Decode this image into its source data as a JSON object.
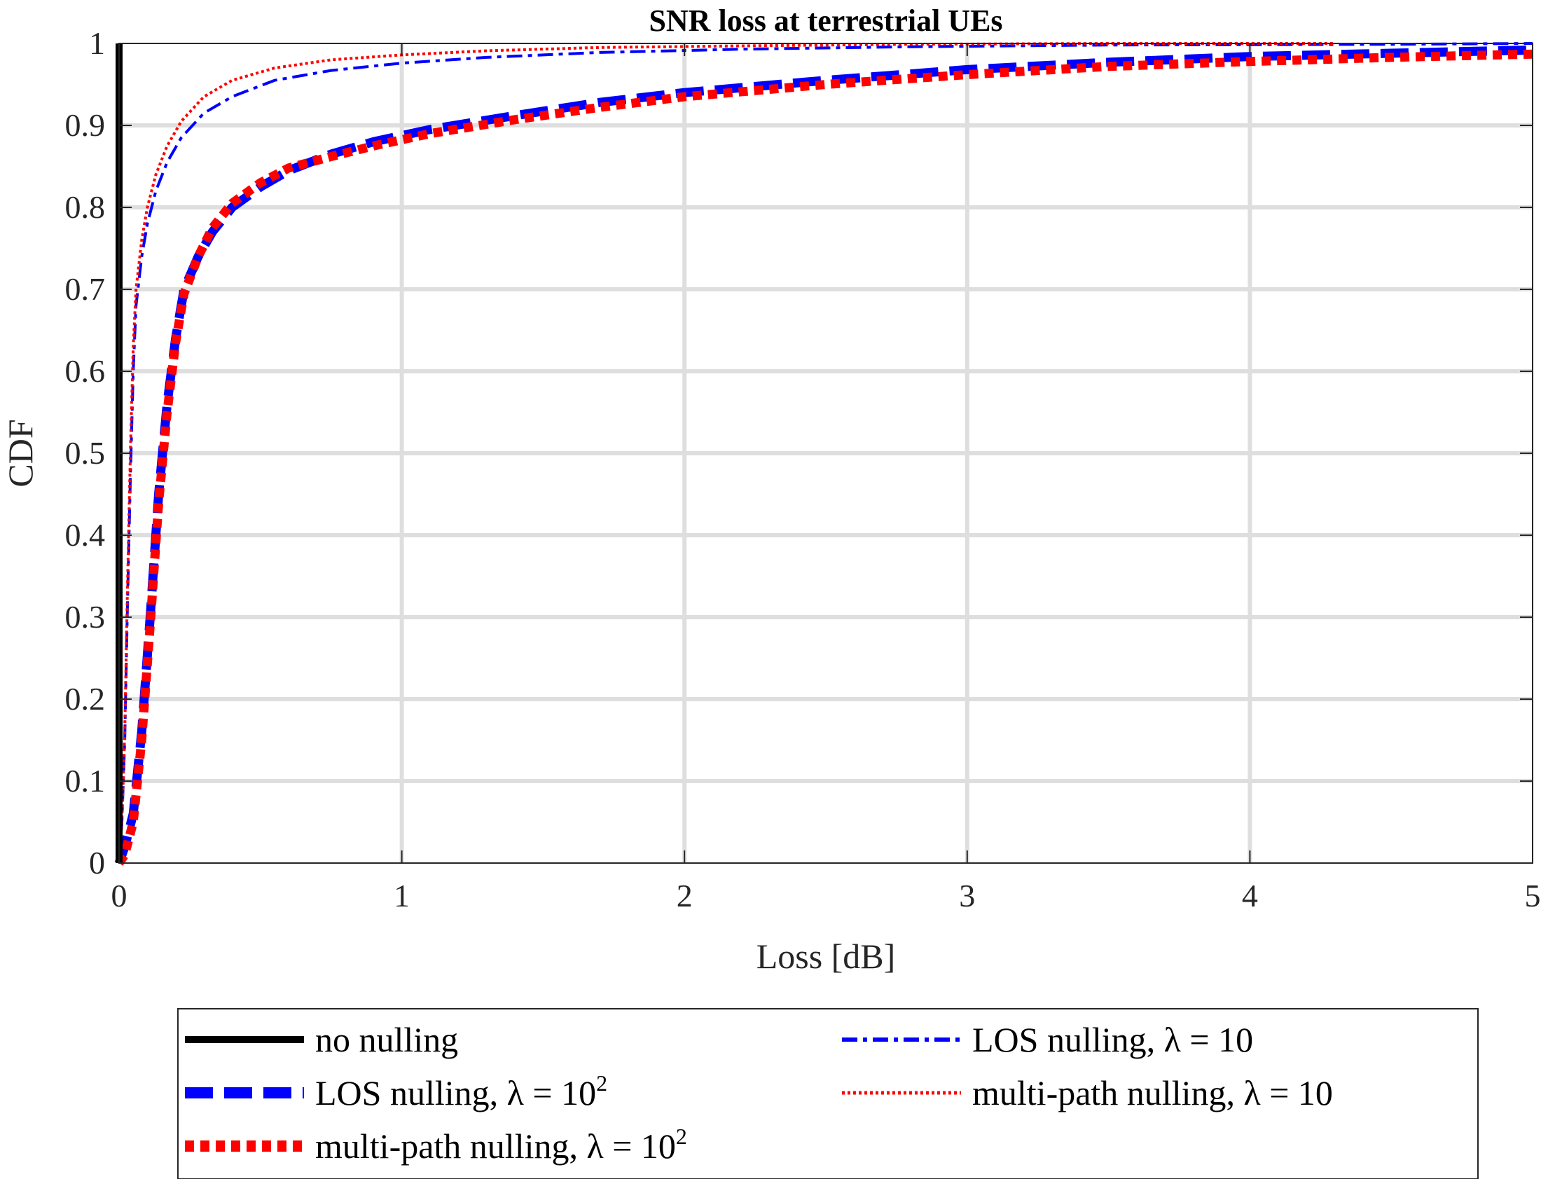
{
  "chart_data": {
    "type": "line",
    "title": "SNR loss at terrestrial UEs",
    "xlabel": "Loss [dB]",
    "ylabel": "CDF",
    "xlim": [
      0,
      5
    ],
    "ylim": [
      0,
      1
    ],
    "xticks": [
      "0",
      "1",
      "2",
      "3",
      "4",
      "5"
    ],
    "yticks": [
      "0",
      "0.1",
      "0.2",
      "0.3",
      "0.4",
      "0.5",
      "0.6",
      "0.7",
      "0.8",
      "0.9",
      "1"
    ],
    "grid": true,
    "legend_position": "below",
    "series": [
      {
        "name": "no nulling",
        "legend_main": "no nulling",
        "legend_sup": "",
        "color": "#000000",
        "style": "solid",
        "points": [
          [
            0,
            0
          ],
          [
            0,
            1
          ]
        ]
      },
      {
        "name": "LOS nulling, λ = 10",
        "legend_main": "LOS nulling, λ = 10",
        "legend_sup": "",
        "color": "#0000ff",
        "style": "dashdot",
        "points": [
          [
            0,
            0
          ],
          [
            0.01,
            0.05
          ],
          [
            0.02,
            0.15
          ],
          [
            0.03,
            0.32
          ],
          [
            0.04,
            0.47
          ],
          [
            0.05,
            0.6
          ],
          [
            0.06,
            0.68
          ],
          [
            0.08,
            0.74
          ],
          [
            0.1,
            0.78
          ],
          [
            0.13,
            0.82
          ],
          [
            0.17,
            0.855
          ],
          [
            0.22,
            0.885
          ],
          [
            0.3,
            0.915
          ],
          [
            0.4,
            0.935
          ],
          [
            0.55,
            0.955
          ],
          [
            0.75,
            0.967
          ],
          [
            1.0,
            0.976
          ],
          [
            1.3,
            0.983
          ],
          [
            1.7,
            0.989
          ],
          [
            2.2,
            0.993
          ],
          [
            2.8,
            0.996
          ],
          [
            3.5,
            0.998
          ],
          [
            4.5,
            0.999
          ],
          [
            5,
            1.0
          ]
        ]
      },
      {
        "name": "LOS nulling, λ = 10²",
        "legend_main": "LOS nulling, λ = 10",
        "legend_sup": "2",
        "color": "#0000ff",
        "style": "dashed",
        "points": [
          [
            0,
            0
          ],
          [
            0.02,
            0.02
          ],
          [
            0.05,
            0.06
          ],
          [
            0.08,
            0.16
          ],
          [
            0.11,
            0.3
          ],
          [
            0.14,
            0.45
          ],
          [
            0.17,
            0.56
          ],
          [
            0.2,
            0.64
          ],
          [
            0.23,
            0.7
          ],
          [
            0.28,
            0.74
          ],
          [
            0.33,
            0.77
          ],
          [
            0.4,
            0.8
          ],
          [
            0.5,
            0.825
          ],
          [
            0.6,
            0.845
          ],
          [
            0.75,
            0.865
          ],
          [
            0.9,
            0.88
          ],
          [
            1.1,
            0.895
          ],
          [
            1.4,
            0.912
          ],
          [
            1.7,
            0.928
          ],
          [
            2.0,
            0.94
          ],
          [
            2.5,
            0.955
          ],
          [
            3.0,
            0.968
          ],
          [
            3.5,
            0.977
          ],
          [
            4.0,
            0.984
          ],
          [
            4.5,
            0.988
          ],
          [
            5.0,
            0.992
          ]
        ]
      },
      {
        "name": "multi-path nulling, λ = 10",
        "legend_main": "multi-path nulling, λ = 10",
        "legend_sup": "",
        "color": "#ff0000",
        "style": "dotted",
        "points": [
          [
            0,
            0
          ],
          [
            0.01,
            0.05
          ],
          [
            0.02,
            0.16
          ],
          [
            0.03,
            0.34
          ],
          [
            0.04,
            0.5
          ],
          [
            0.05,
            0.63
          ],
          [
            0.06,
            0.7
          ],
          [
            0.08,
            0.76
          ],
          [
            0.1,
            0.8
          ],
          [
            0.13,
            0.84
          ],
          [
            0.17,
            0.875
          ],
          [
            0.22,
            0.905
          ],
          [
            0.3,
            0.935
          ],
          [
            0.4,
            0.955
          ],
          [
            0.55,
            0.97
          ],
          [
            0.75,
            0.98
          ],
          [
            1.0,
            0.986
          ],
          [
            1.3,
            0.991
          ],
          [
            1.7,
            0.995
          ],
          [
            2.2,
            0.997
          ],
          [
            2.8,
            0.999
          ],
          [
            3.5,
            1.0
          ],
          [
            4.3,
            1.0
          ]
        ]
      },
      {
        "name": "multi-path nulling, λ = 10²",
        "legend_main": "multi-path nulling, λ = 10",
        "legend_sup": "2",
        "color": "#ff0000",
        "style": "dotted-thick",
        "points": [
          [
            0,
            0
          ],
          [
            0.02,
            0.01
          ],
          [
            0.05,
            0.05
          ],
          [
            0.08,
            0.15
          ],
          [
            0.11,
            0.29
          ],
          [
            0.14,
            0.44
          ],
          [
            0.17,
            0.55
          ],
          [
            0.2,
            0.635
          ],
          [
            0.23,
            0.695
          ],
          [
            0.28,
            0.74
          ],
          [
            0.33,
            0.775
          ],
          [
            0.4,
            0.805
          ],
          [
            0.5,
            0.83
          ],
          [
            0.6,
            0.848
          ],
          [
            0.75,
            0.862
          ],
          [
            0.9,
            0.875
          ],
          [
            1.1,
            0.89
          ],
          [
            1.4,
            0.907
          ],
          [
            1.7,
            0.922
          ],
          [
            2.0,
            0.935
          ],
          [
            2.5,
            0.95
          ],
          [
            3.0,
            0.962
          ],
          [
            3.5,
            0.972
          ],
          [
            4.0,
            0.978
          ],
          [
            4.5,
            0.983
          ],
          [
            5.0,
            0.987
          ]
        ]
      }
    ]
  }
}
